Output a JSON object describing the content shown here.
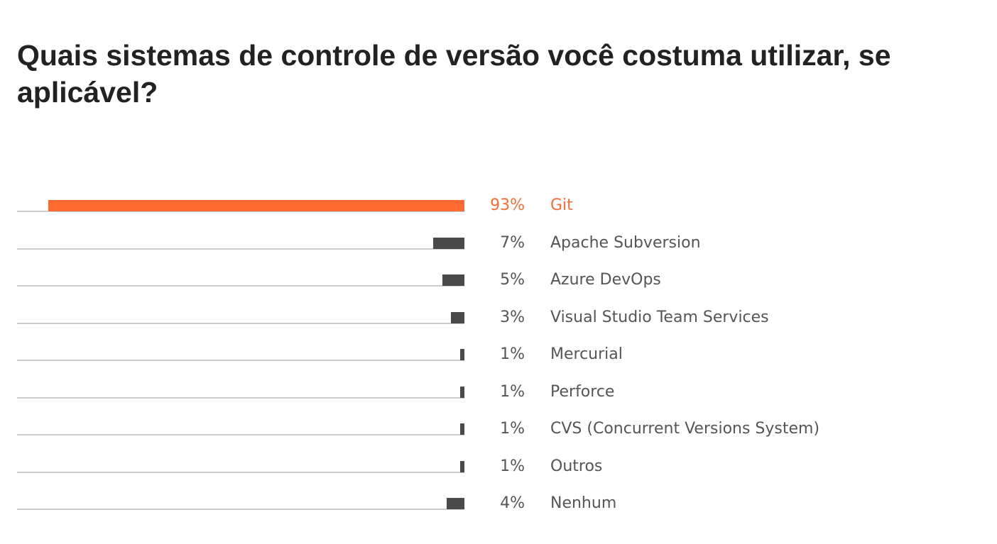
{
  "title": "Quais sistemas de controle de versão você costuma utilizar, se aplicável?",
  "colors": {
    "highlight": "#ff6a33",
    "bar": "#4a4a4a",
    "track": "#cccccc",
    "text": "#555555",
    "title": "#222222"
  },
  "chart_data": {
    "type": "bar",
    "orientation": "horizontal",
    "title": "Quais sistemas de controle de versão você costuma utilizar, se aplicável?",
    "xlabel": "",
    "ylabel": "",
    "xlim": [
      0,
      100
    ],
    "unit": "%",
    "highlighted_category": "Git",
    "categories": [
      "Git",
      "Apache Subversion",
      "Azure DevOps",
      "Visual Studio Team Services",
      "Mercurial",
      "Perforce",
      "CVS (Concurrent Versions System)",
      "Outros",
      "Nenhum"
    ],
    "values": [
      93,
      7,
      5,
      3,
      1,
      1,
      1,
      1,
      4
    ],
    "value_labels": [
      "93%",
      "7%",
      "5%",
      "3%",
      "1%",
      "1%",
      "1%",
      "1%",
      "4%"
    ]
  }
}
